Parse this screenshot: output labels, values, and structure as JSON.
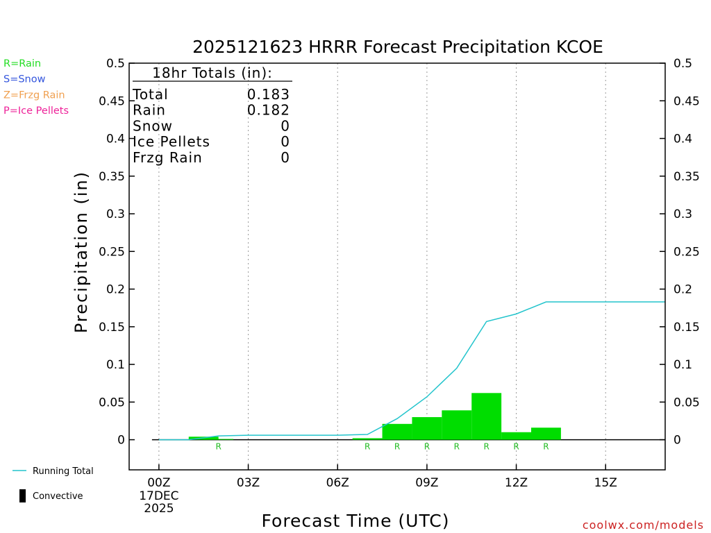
{
  "chart_data": {
    "type": "bar",
    "title": "2025121623 HRRR Forecast Precipitation KCOE",
    "xlabel": "Forecast Time (UTC)",
    "ylabel": "Precipitation (in)",
    "xlim": [
      -1,
      17
    ],
    "ylim": [
      -0.04,
      0.5
    ],
    "x_ticks": [
      {
        "x": 0,
        "label": "00Z",
        "sub": [
          "17DEC",
          "2025"
        ]
      },
      {
        "x": 3,
        "label": "03Z"
      },
      {
        "x": 6,
        "label": "06Z"
      },
      {
        "x": 9,
        "label": "09Z"
      },
      {
        "x": 12,
        "label": "12Z"
      },
      {
        "x": 15,
        "label": "15Z"
      }
    ],
    "y_ticks": [
      {
        "y": 0,
        "label": "0"
      },
      {
        "y": 0.05,
        "label": "0.05"
      },
      {
        "y": 0.1,
        "label": "0.1"
      },
      {
        "y": 0.15,
        "label": "0.15"
      },
      {
        "y": 0.2,
        "label": "0.2"
      },
      {
        "y": 0.25,
        "label": "0.25"
      },
      {
        "y": 0.3,
        "label": "0.3"
      },
      {
        "y": 0.35,
        "label": "0.35"
      },
      {
        "y": 0.4,
        "label": "0.4"
      },
      {
        "y": 0.45,
        "label": "0.45"
      },
      {
        "y": 0.5,
        "label": "0.5"
      }
    ],
    "grid": "vertical dotted at tick positions",
    "bars": [
      {
        "x": 1.5,
        "value": 0.004
      },
      {
        "x": 2.0,
        "value": 0.001
      },
      {
        "x": 7.0,
        "value": 0.002
      },
      {
        "x": 8.0,
        "value": 0.021
      },
      {
        "x": 9.0,
        "value": 0.03
      },
      {
        "x": 10.0,
        "value": 0.039
      },
      {
        "x": 11.0,
        "value": 0.062
      },
      {
        "x": 12.0,
        "value": 0.01
      },
      {
        "x": 13.0,
        "value": 0.016
      }
    ],
    "precip_type_markers": [
      {
        "x": 2.0,
        "label": "R"
      },
      {
        "x": 7.0,
        "label": "R"
      },
      {
        "x": 8.0,
        "label": "R"
      },
      {
        "x": 9.0,
        "label": "R"
      },
      {
        "x": 10.0,
        "label": "R"
      },
      {
        "x": 11.0,
        "label": "R"
      },
      {
        "x": 12.0,
        "label": "R"
      },
      {
        "x": 13.0,
        "label": "R"
      }
    ],
    "running_total": {
      "name": "Running Total",
      "x": [
        0,
        1,
        2,
        3,
        4,
        5,
        6,
        7,
        8,
        9,
        10,
        11,
        12,
        13,
        14,
        15,
        16,
        17
      ],
      "y": [
        0.0,
        0.0,
        0.005,
        0.006,
        0.006,
        0.006,
        0.006,
        0.007,
        0.028,
        0.057,
        0.095,
        0.157,
        0.167,
        0.183,
        0.183,
        0.183,
        0.183,
        0.183
      ]
    },
    "totals_box": {
      "header": "18hr Totals (in):",
      "rows": [
        {
          "label": "Total",
          "value": "0.183"
        },
        {
          "label": "Rain",
          "value": "0.182"
        },
        {
          "label": "Snow",
          "value": "0"
        },
        {
          "label": "Ice Pellets",
          "value": "0"
        },
        {
          "label": "Frzg Rain",
          "value": "0"
        }
      ]
    },
    "type_legend": [
      {
        "text": "R=Rain",
        "color": "#22dd22"
      },
      {
        "text": "S=Snow",
        "color": "#3355dd"
      },
      {
        "text": "Z=Frzg Rain",
        "color": "#f0a050"
      },
      {
        "text": "P=Ice Pellets",
        "color": "#ee2299"
      }
    ],
    "legend": [
      {
        "text": "Running Total",
        "color": "#22c4cc",
        "kind": "line"
      },
      {
        "text": "Convective",
        "color": "#000000",
        "kind": "bar"
      }
    ],
    "colors": {
      "bar": "#00dd00",
      "running_total": "#22c4cc",
      "marker": "#22bb22",
      "watermark": "#cc2222"
    },
    "watermark": "coolwx.com/models"
  }
}
